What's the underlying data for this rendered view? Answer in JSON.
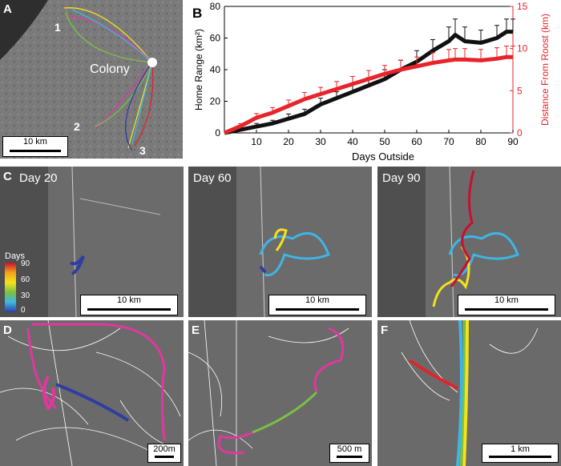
{
  "panel_a": {
    "label": "A",
    "colony_label": "Colony",
    "site_labels": [
      "1",
      "2",
      "3"
    ],
    "scale_label": "10 km"
  },
  "panel_b": {
    "label": "B"
  },
  "chart_data": {
    "type": "line",
    "title": "",
    "xlabel": "Days Outside",
    "ylabel_left": "Home Range (km²)",
    "ylabel_right": "Distance From Roost (km)",
    "xlim": [
      0,
      90
    ],
    "ylim_left": [
      0,
      80
    ],
    "ylim_right": [
      0,
      15
    ],
    "xticks": [
      10,
      20,
      30,
      40,
      50,
      60,
      70,
      80,
      90
    ],
    "yticks_left": [
      0,
      20,
      40,
      60,
      80
    ],
    "yticks_right": [
      0,
      5,
      10,
      15
    ],
    "grid": false,
    "series": [
      {
        "axis": "left",
        "color": "#111111",
        "x": [
          0,
          5,
          10,
          15,
          20,
          25,
          30,
          35,
          40,
          45,
          50,
          55,
          60,
          65,
          70,
          72,
          75,
          80,
          85,
          88,
          90
        ],
        "y": [
          0,
          2,
          4,
          6,
          9,
          12,
          18,
          22,
          26,
          30,
          34,
          40,
          45,
          52,
          58,
          62,
          58,
          57,
          60,
          64,
          64
        ],
        "err": [
          0,
          1,
          2,
          2,
          3,
          3,
          4,
          4,
          5,
          5,
          6,
          6,
          7,
          7,
          9,
          10,
          9,
          8,
          8,
          8,
          8
        ]
      },
      {
        "axis": "right",
        "color": "#e8242b",
        "x": [
          0,
          5,
          10,
          15,
          20,
          25,
          30,
          35,
          40,
          45,
          50,
          55,
          60,
          65,
          70,
          72,
          75,
          80,
          85,
          88,
          90
        ],
        "y": [
          0,
          0.8,
          1.8,
          2.4,
          3.2,
          4.0,
          4.6,
          5.2,
          5.8,
          6.4,
          7.0,
          7.5,
          7.9,
          8.3,
          8.6,
          8.7,
          8.7,
          8.6,
          8.8,
          9.0,
          9.0
        ],
        "err": [
          0,
          0.3,
          0.5,
          0.6,
          0.7,
          0.8,
          0.8,
          0.9,
          0.9,
          1.0,
          1.0,
          1.1,
          1.1,
          1.2,
          1.3,
          1.3,
          1.3,
          1.3,
          1.3,
          1.3,
          1.3
        ]
      }
    ]
  },
  "panel_c": {
    "label": "C",
    "days": [
      "Day 20",
      "Day 60",
      "Day 90"
    ],
    "scale_label": "10 km",
    "cbar_title": "Days",
    "cbar_ticks": [
      "90",
      "60",
      "30",
      "0"
    ]
  },
  "panel_d": {
    "label": "D",
    "scale_label": "200m"
  },
  "panel_e": {
    "label": "E",
    "scale_label": "500 m"
  },
  "panel_f": {
    "label": "F",
    "scale_label": "1 km"
  },
  "colors": {
    "magenta": "#e0389e",
    "blue": "#2f3ea0",
    "green": "#7ac143",
    "red": "#e0242b",
    "yellow": "#f4e21a",
    "cyan": "#3db6e6"
  }
}
